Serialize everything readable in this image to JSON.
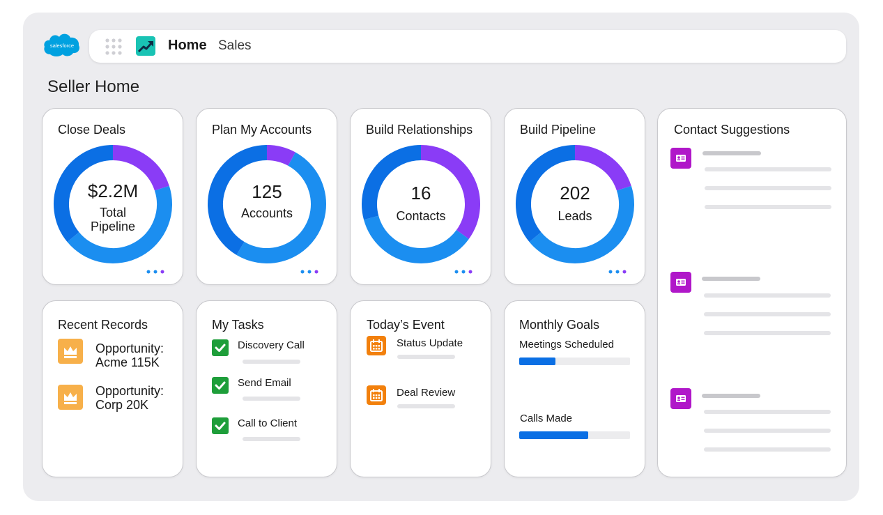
{
  "brand": {
    "logo_text": "salesforce"
  },
  "topbar": {
    "home_label": "Home",
    "sales_label": "Sales"
  },
  "page_title": "Seller Home",
  "metrics": [
    {
      "title": "Close Deals",
      "value": "$2.2M",
      "label_line1": "Total",
      "label_line2": "Pipeline",
      "segments": [
        0.2,
        0.8
      ]
    },
    {
      "title": "Plan My Accounts",
      "value": "125",
      "label_line1": "Accounts",
      "label_line2": "",
      "segments": [
        0.08,
        0.92
      ]
    },
    {
      "title": "Build Relationships",
      "value": "16",
      "label_line1": "Contacts",
      "label_line2": "",
      "segments": [
        0.35,
        0.65
      ]
    },
    {
      "title": "Build Pipeline",
      "value": "202",
      "label_line1": "Leads",
      "label_line2": "",
      "segments": [
        0.2,
        0.8
      ]
    }
  ],
  "recent_records": {
    "title": "Recent Records",
    "items": [
      {
        "line1": "Opportunity:",
        "line2": "Acme 115K"
      },
      {
        "line1": "Opportunity:",
        "line2": "Corp 20K"
      }
    ]
  },
  "tasks": {
    "title": "My Tasks",
    "items": [
      {
        "label": "Discovery Call"
      },
      {
        "label": "Send Email"
      },
      {
        "label": "Call to Client"
      }
    ]
  },
  "events": {
    "title": "Today’s Event",
    "items": [
      {
        "label": "Status Update"
      },
      {
        "label": "Deal Review"
      }
    ]
  },
  "goals": {
    "title": "Monthly Goals",
    "items": [
      {
        "label": "Meetings Scheduled",
        "progress": 0.33
      },
      {
        "label": "Calls Made",
        "progress": 0.62
      }
    ]
  },
  "contact_suggestions": {
    "title": "Contact Suggestions",
    "count": 3
  },
  "colors": {
    "blue_light": "#1b8ef0",
    "blue_dark": "#0b6fe4",
    "purple": "#8a3cf6",
    "purple_icon": "#b017c9",
    "check_green": "#1e9e3a",
    "event_orange": "#f2800c",
    "crown_orange": "#f7b04a"
  },
  "icons": {
    "grid": "app-launcher-icon",
    "app": "sales-app-icon",
    "record": "crown-icon",
    "task": "checkbox-icon",
    "event": "calendar-icon",
    "contact": "contact-card-icon"
  }
}
